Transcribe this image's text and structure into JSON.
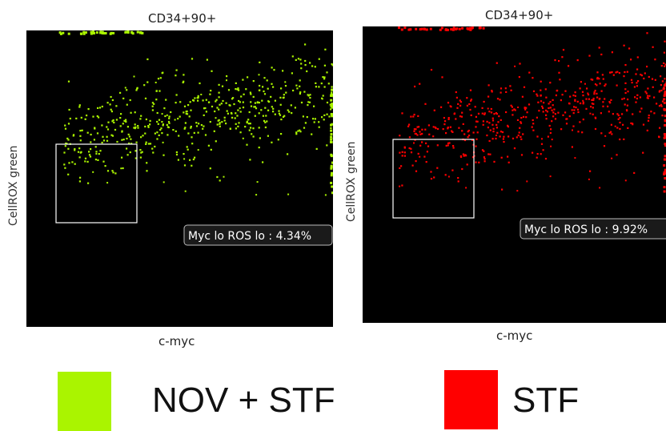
{
  "colors": {
    "nov_stf": "#aaf400",
    "stf": "#ff0000",
    "plot_bg": "#000000",
    "gate_border": "#ffffff"
  },
  "legend": [
    {
      "label": "NOV + STF",
      "color": "#aaf400"
    },
    {
      "label": "STF",
      "color": "#ff0000"
    }
  ],
  "chart_data": [
    {
      "type": "scatter",
      "title": "CD34+90+",
      "xlabel": "c-myc",
      "ylabel": "CellROX green",
      "grid": false,
      "series_color": "#aaf400",
      "gate": {
        "name": "Myc lo ROS lo",
        "label": "Myc lo ROS lo : 4.34%",
        "percent": 4.34
      }
    },
    {
      "type": "scatter",
      "title": "CD34+90+",
      "xlabel": "c-myc",
      "ylabel": "CellROX green",
      "grid": false,
      "series_color": "#ff0000",
      "gate": {
        "name": "Myc lo ROS lo",
        "label": "Myc lo ROS lo : 9.92%",
        "percent": 9.92
      }
    }
  ]
}
